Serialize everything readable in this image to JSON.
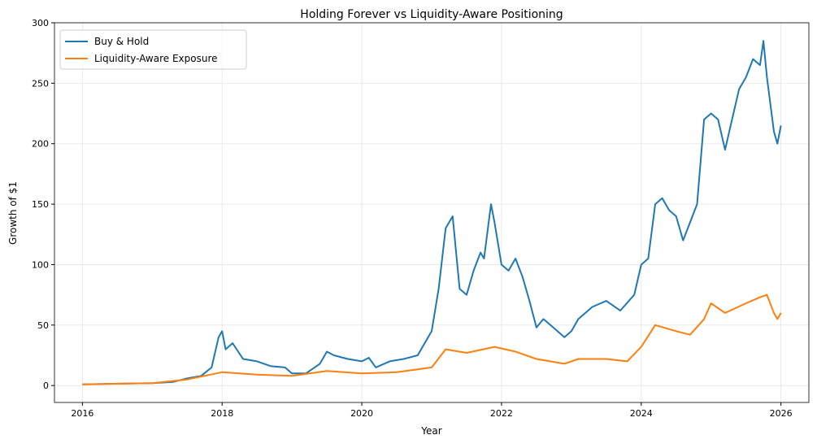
{
  "chart_data": {
    "type": "line",
    "title": "Holding Forever vs Liquidity-Aware Positioning",
    "xlabel": "Year",
    "ylabel": "Growth of $1",
    "xlim": [
      2015.6,
      2026.4
    ],
    "ylim": [
      -14,
      300
    ],
    "xticks": [
      2016,
      2018,
      2020,
      2022,
      2024,
      2026
    ],
    "yticks": [
      0,
      50,
      100,
      150,
      200,
      250,
      300
    ],
    "grid": true,
    "legend": "top-left",
    "series": [
      {
        "name": "Buy & Hold",
        "color": "#1f77b4",
        "x": [
          2016.0,
          2016.5,
          2017.0,
          2017.3,
          2017.5,
          2017.7,
          2017.85,
          2017.95,
          2018.0,
          2018.05,
          2018.15,
          2018.3,
          2018.5,
          2018.7,
          2018.9,
          2019.0,
          2019.2,
          2019.4,
          2019.5,
          2019.6,
          2019.8,
          2020.0,
          2020.1,
          2020.2,
          2020.4,
          2020.6,
          2020.8,
          2020.9,
          2021.0,
          2021.1,
          2021.2,
          2021.3,
          2021.35,
          2021.4,
          2021.5,
          2021.6,
          2021.7,
          2021.75,
          2021.85,
          2021.9,
          2022.0,
          2022.1,
          2022.2,
          2022.3,
          2022.4,
          2022.5,
          2022.6,
          2022.7,
          2022.8,
          2022.9,
          2023.0,
          2023.1,
          2023.3,
          2023.5,
          2023.7,
          2023.9,
          2024.0,
          2024.1,
          2024.2,
          2024.3,
          2024.4,
          2024.5,
          2024.6,
          2024.7,
          2024.8,
          2024.9,
          2025.0,
          2025.1,
          2025.2,
          2025.3,
          2025.4,
          2025.5,
          2025.6,
          2025.7,
          2025.75,
          2025.8,
          2025.9,
          2025.95,
          2026.0
        ],
        "y": [
          1,
          1.5,
          2,
          3,
          6,
          8,
          15,
          40,
          45,
          30,
          35,
          22,
          20,
          16,
          15,
          10,
          10,
          18,
          28,
          25,
          22,
          20,
          23,
          15,
          20,
          22,
          25,
          35,
          45,
          80,
          130,
          140,
          110,
          80,
          75,
          95,
          110,
          105,
          150,
          135,
          100,
          95,
          105,
          90,
          70,
          48,
          55,
          50,
          45,
          40,
          45,
          55,
          65,
          70,
          62,
          75,
          100,
          105,
          150,
          155,
          145,
          140,
          120,
          135,
          150,
          220,
          225,
          220,
          195,
          220,
          245,
          255,
          270,
          265,
          285,
          255,
          210,
          200,
          215
        ]
      },
      {
        "name": "Liquidity-Aware Exposure",
        "color": "#ff7f0e",
        "x": [
          2016.0,
          2017.0,
          2017.5,
          2018.0,
          2018.5,
          2019.0,
          2019.5,
          2020.0,
          2020.5,
          2021.0,
          2021.2,
          2021.5,
          2021.9,
          2022.2,
          2022.5,
          2022.9,
          2023.1,
          2023.5,
          2023.8,
          2024.0,
          2024.2,
          2024.5,
          2024.7,
          2024.9,
          2025.0,
          2025.2,
          2025.5,
          2025.7,
          2025.8,
          2025.9,
          2025.95,
          2026.0
        ],
        "y": [
          1,
          2,
          5,
          11,
          9,
          8,
          12,
          10,
          11,
          15,
          30,
          27,
          32,
          28,
          22,
          18,
          22,
          22,
          20,
          32,
          50,
          45,
          42,
          55,
          68,
          60,
          68,
          73,
          75,
          60,
          55,
          60
        ]
      }
    ]
  }
}
